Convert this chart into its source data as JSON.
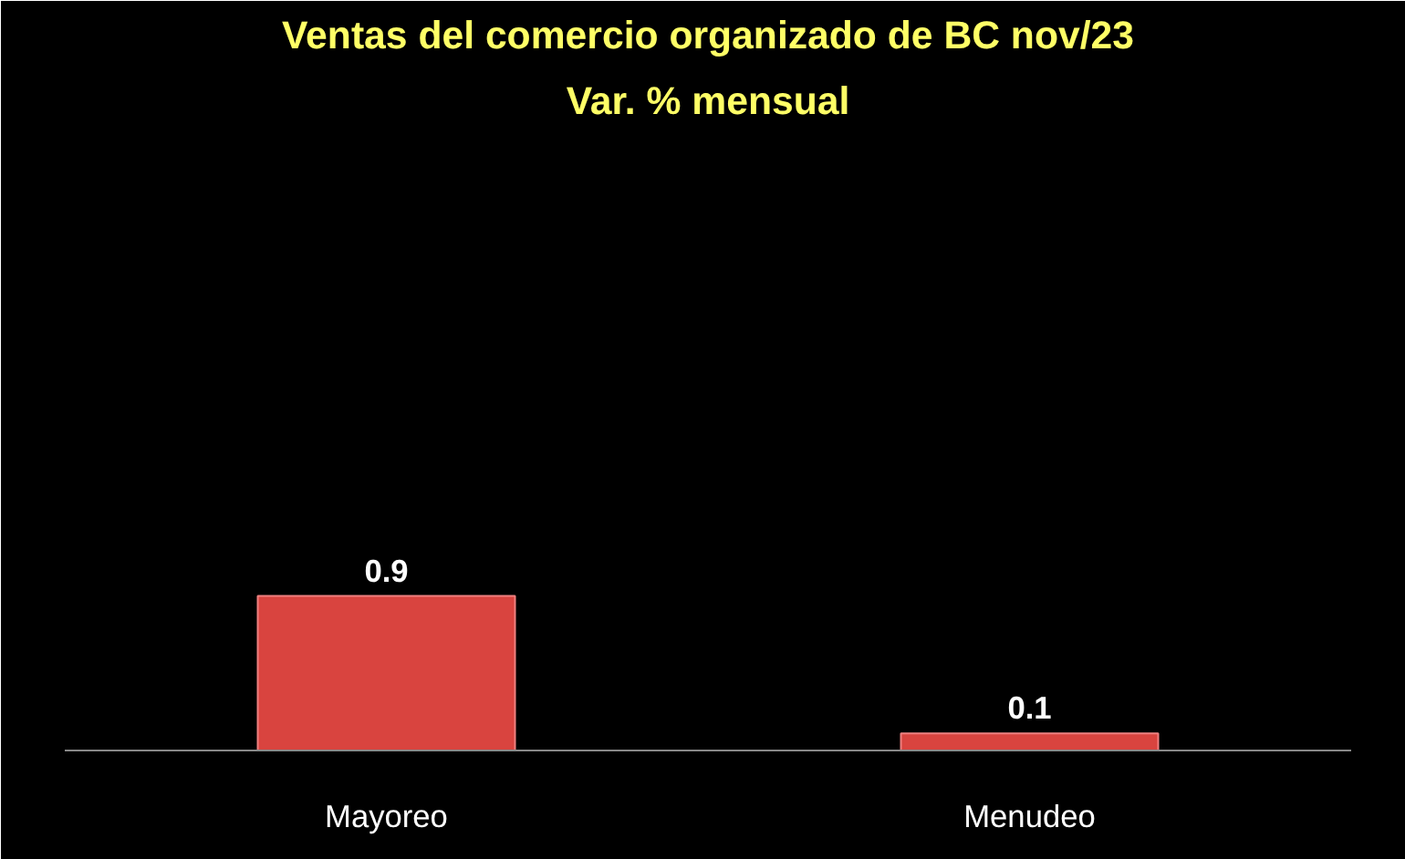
{
  "chart_data": {
    "type": "bar",
    "title": "Ventas del comercio organizado de BC nov/23",
    "subtitle": "Var. % mensual",
    "categories": [
      "Mayoreo",
      "Menudeo"
    ],
    "values": [
      0.9,
      0.1
    ],
    "color": "#d9443f",
    "data_labels": true,
    "grid": false
  }
}
